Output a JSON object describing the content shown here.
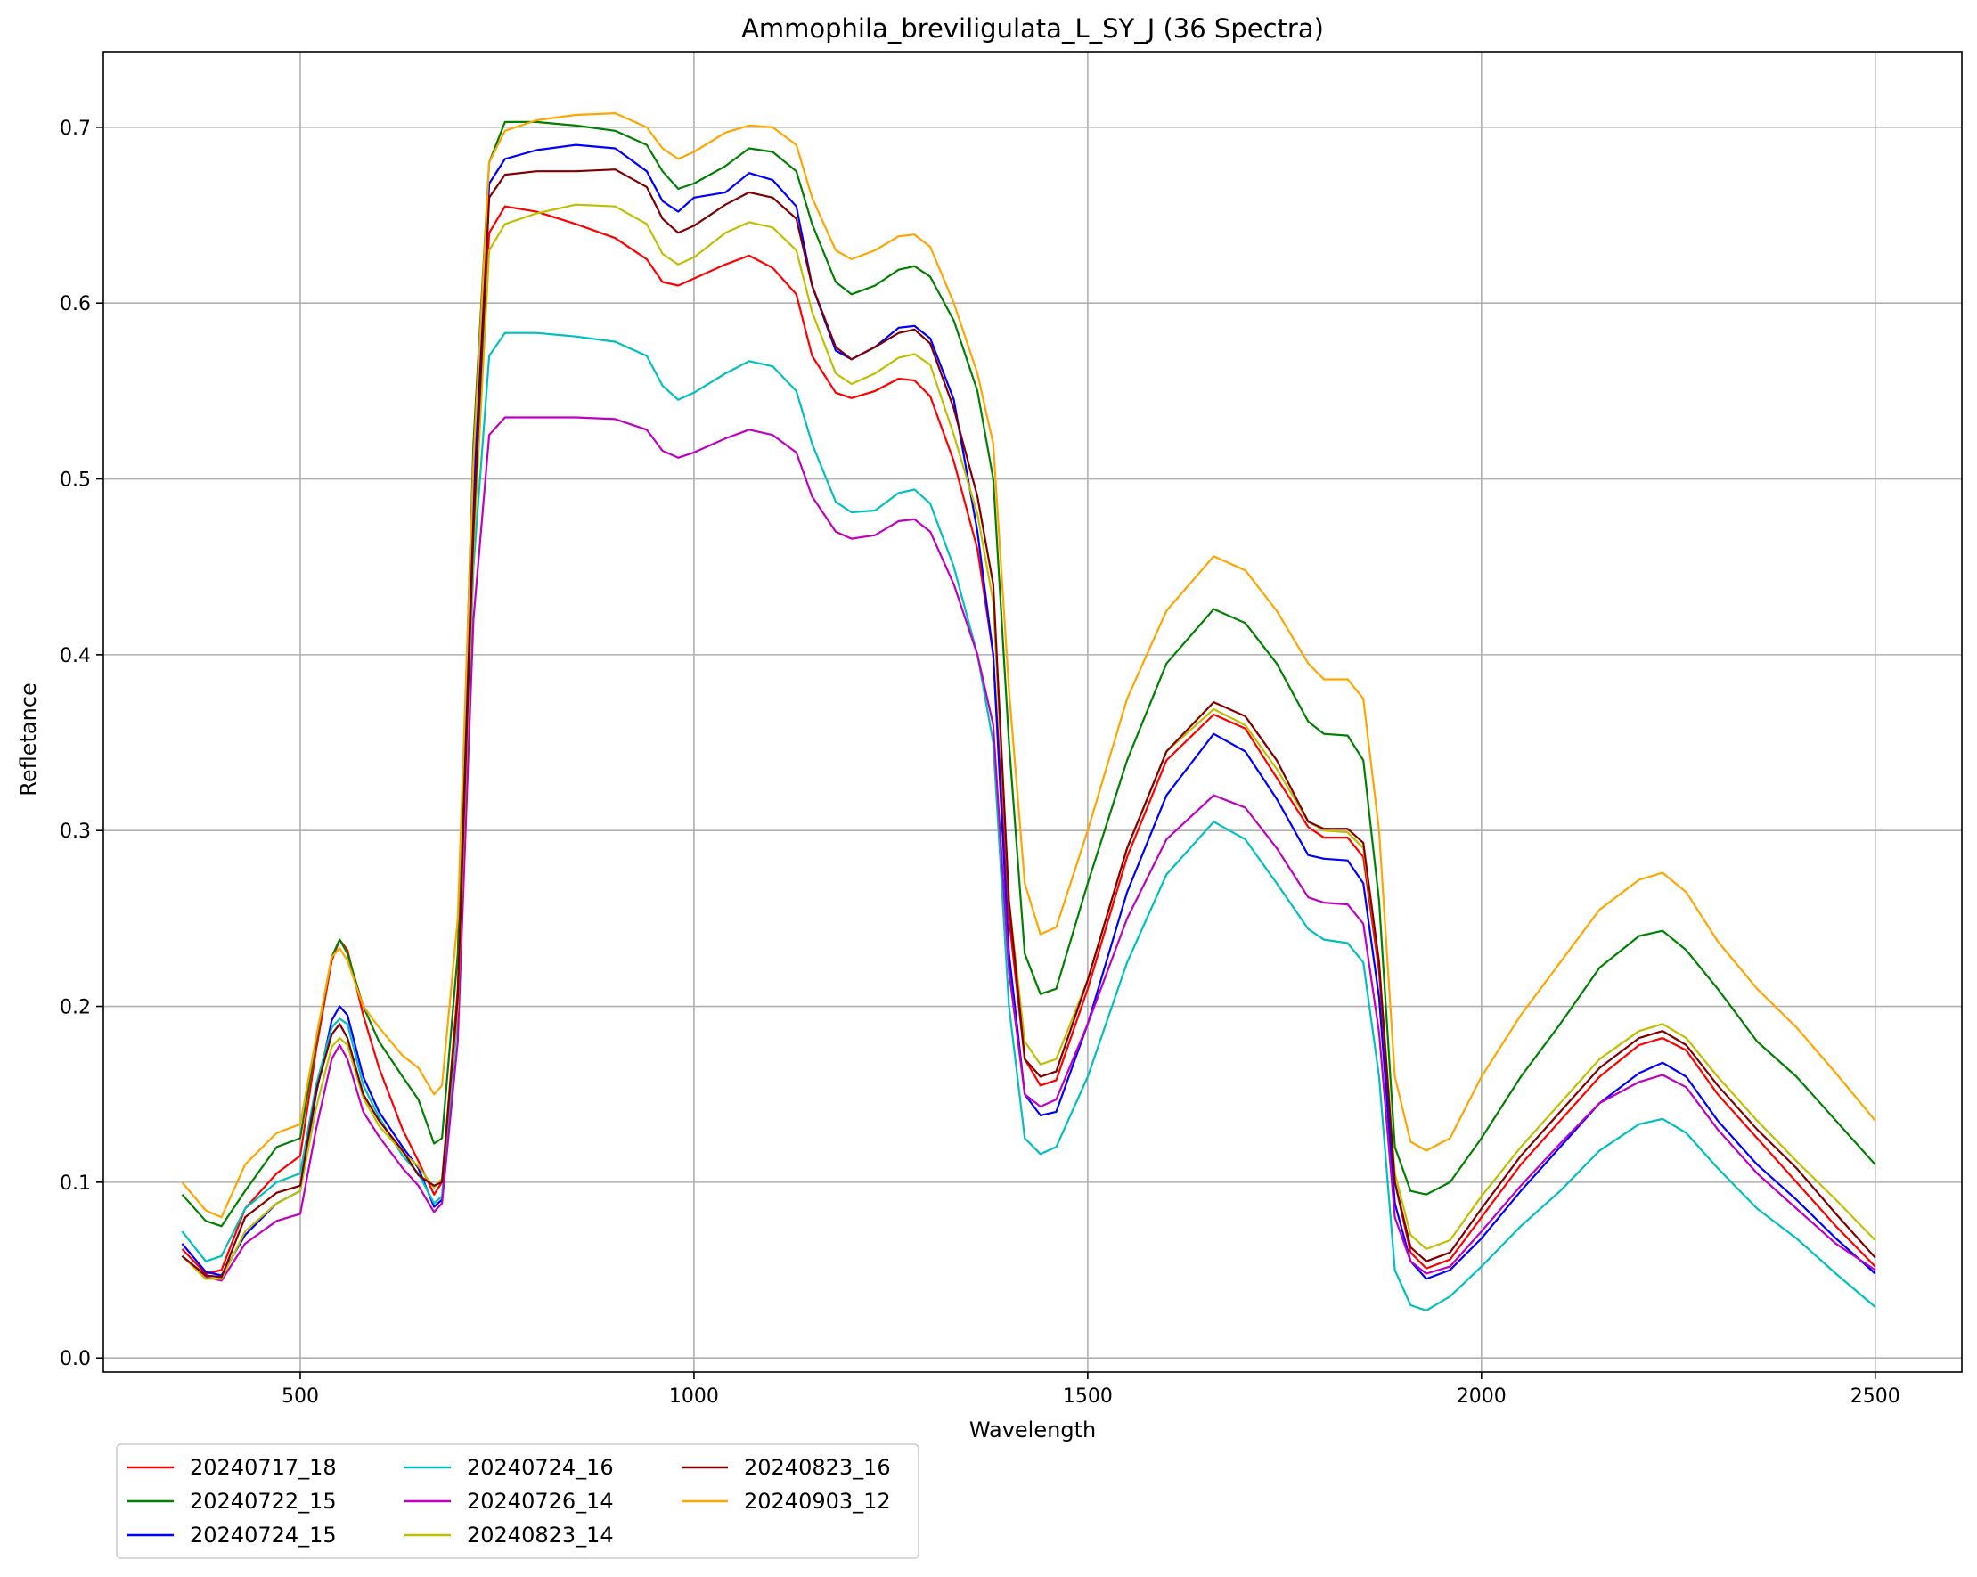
{
  "chart_data": {
    "type": "line",
    "title": "Ammophila_breviligulata_L_SY_J (36 Spectra)",
    "xlabel": "Wavelength",
    "ylabel": "Refletance",
    "xlim": [
      250,
      2610
    ],
    "ylim": [
      -0.008,
      0.743
    ],
    "xticks": [
      500,
      1000,
      1500,
      2000,
      2500
    ],
    "yticks": [
      0.0,
      0.1,
      0.2,
      0.3,
      0.4,
      0.5,
      0.6,
      0.7
    ],
    "grid": true,
    "legend": {
      "position": "bottom-left-outside",
      "columns": 3
    },
    "x": [
      350,
      380,
      400,
      430,
      470,
      500,
      520,
      540,
      550,
      560,
      580,
      600,
      630,
      650,
      670,
      680,
      700,
      720,
      740,
      760,
      800,
      850,
      900,
      940,
      960,
      980,
      1000,
      1040,
      1070,
      1100,
      1130,
      1150,
      1180,
      1200,
      1230,
      1260,
      1280,
      1300,
      1330,
      1360,
      1380,
      1400,
      1420,
      1440,
      1460,
      1500,
      1550,
      1600,
      1660,
      1700,
      1740,
      1780,
      1800,
      1830,
      1850,
      1870,
      1890,
      1910,
      1930,
      1960,
      2000,
      2050,
      2100,
      2150,
      2200,
      2230,
      2260,
      2300,
      2350,
      2400,
      2450,
      2500
    ],
    "series": [
      {
        "name": "20240717_18",
        "color": "#ff0000",
        "values": [
          0.062,
          0.048,
          0.05,
          0.085,
          0.105,
          0.115,
          0.175,
          0.226,
          0.238,
          0.232,
          0.195,
          0.165,
          0.13,
          0.112,
          0.093,
          0.1,
          0.21,
          0.48,
          0.64,
          0.655,
          0.652,
          0.645,
          0.637,
          0.625,
          0.612,
          0.61,
          0.614,
          0.622,
          0.627,
          0.62,
          0.605,
          0.57,
          0.549,
          0.546,
          0.55,
          0.557,
          0.556,
          0.547,
          0.51,
          0.46,
          0.4,
          0.25,
          0.17,
          0.155,
          0.158,
          0.21,
          0.285,
          0.34,
          0.366,
          0.358,
          0.33,
          0.302,
          0.296,
          0.296,
          0.285,
          0.22,
          0.1,
          0.06,
          0.051,
          0.056,
          0.08,
          0.11,
          0.135,
          0.16,
          0.178,
          0.182,
          0.175,
          0.15,
          0.125,
          0.1,
          0.075,
          0.052
        ]
      },
      {
        "name": "20240722_15",
        "color": "#008000",
        "values": [
          0.093,
          0.078,
          0.075,
          0.095,
          0.12,
          0.125,
          0.18,
          0.228,
          0.238,
          0.23,
          0.2,
          0.18,
          0.16,
          0.147,
          0.122,
          0.125,
          0.23,
          0.52,
          0.68,
          0.703,
          0.703,
          0.701,
          0.698,
          0.69,
          0.675,
          0.665,
          0.668,
          0.678,
          0.688,
          0.686,
          0.675,
          0.645,
          0.612,
          0.605,
          0.61,
          0.619,
          0.621,
          0.615,
          0.59,
          0.55,
          0.5,
          0.35,
          0.23,
          0.207,
          0.21,
          0.27,
          0.34,
          0.395,
          0.426,
          0.418,
          0.395,
          0.362,
          0.355,
          0.354,
          0.34,
          0.26,
          0.12,
          0.095,
          0.093,
          0.1,
          0.125,
          0.16,
          0.19,
          0.222,
          0.24,
          0.243,
          0.232,
          0.21,
          0.18,
          0.16,
          0.135,
          0.11
        ]
      },
      {
        "name": "20240724_15",
        "color": "#0000ff",
        "values": [
          0.065,
          0.049,
          0.047,
          0.07,
          0.088,
          0.095,
          0.15,
          0.192,
          0.2,
          0.195,
          0.16,
          0.14,
          0.12,
          0.108,
          0.086,
          0.09,
          0.2,
          0.49,
          0.668,
          0.682,
          0.687,
          0.69,
          0.688,
          0.675,
          0.658,
          0.652,
          0.66,
          0.663,
          0.674,
          0.67,
          0.655,
          0.61,
          0.573,
          0.568,
          0.575,
          0.586,
          0.587,
          0.58,
          0.545,
          0.47,
          0.4,
          0.23,
          0.15,
          0.138,
          0.14,
          0.19,
          0.265,
          0.32,
          0.355,
          0.345,
          0.318,
          0.286,
          0.284,
          0.283,
          0.27,
          0.205,
          0.088,
          0.055,
          0.045,
          0.05,
          0.068,
          0.095,
          0.12,
          0.145,
          0.162,
          0.168,
          0.16,
          0.135,
          0.11,
          0.09,
          0.068,
          0.048
        ]
      },
      {
        "name": "20240724_16",
        "color": "#00bfbf",
        "values": [
          0.072,
          0.055,
          0.058,
          0.085,
          0.1,
          0.105,
          0.155,
          0.188,
          0.193,
          0.19,
          0.155,
          0.137,
          0.115,
          0.105,
          0.088,
          0.092,
          0.195,
          0.45,
          0.57,
          0.583,
          0.583,
          0.581,
          0.578,
          0.57,
          0.553,
          0.545,
          0.549,
          0.56,
          0.567,
          0.564,
          0.55,
          0.52,
          0.487,
          0.481,
          0.482,
          0.492,
          0.494,
          0.486,
          0.45,
          0.4,
          0.35,
          0.2,
          0.125,
          0.116,
          0.12,
          0.16,
          0.225,
          0.275,
          0.305,
          0.295,
          0.27,
          0.244,
          0.238,
          0.236,
          0.225,
          0.16,
          0.05,
          0.03,
          0.027,
          0.035,
          0.052,
          0.075,
          0.095,
          0.118,
          0.133,
          0.136,
          0.128,
          0.108,
          0.085,
          0.068,
          0.048,
          0.029
        ]
      },
      {
        "name": "20240726_14",
        "color": "#bf00bf",
        "values": [
          0.058,
          0.046,
          0.044,
          0.065,
          0.078,
          0.082,
          0.13,
          0.17,
          0.178,
          0.17,
          0.14,
          0.126,
          0.108,
          0.098,
          0.083,
          0.088,
          0.18,
          0.42,
          0.525,
          0.535,
          0.535,
          0.535,
          0.534,
          0.528,
          0.516,
          0.512,
          0.515,
          0.523,
          0.528,
          0.525,
          0.515,
          0.49,
          0.47,
          0.466,
          0.468,
          0.476,
          0.477,
          0.47,
          0.44,
          0.4,
          0.36,
          0.22,
          0.15,
          0.143,
          0.147,
          0.19,
          0.25,
          0.295,
          0.32,
          0.313,
          0.29,
          0.262,
          0.259,
          0.258,
          0.247,
          0.185,
          0.08,
          0.055,
          0.048,
          0.052,
          0.072,
          0.098,
          0.122,
          0.145,
          0.157,
          0.161,
          0.154,
          0.13,
          0.105,
          0.085,
          0.065,
          0.05
        ]
      },
      {
        "name": "20240823_14",
        "color": "#bfbf00",
        "values": [
          0.058,
          0.045,
          0.045,
          0.072,
          0.088,
          0.095,
          0.142,
          0.177,
          0.182,
          0.178,
          0.148,
          0.132,
          0.117,
          0.109,
          0.097,
          0.102,
          0.2,
          0.46,
          0.63,
          0.645,
          0.651,
          0.656,
          0.655,
          0.645,
          0.628,
          0.622,
          0.626,
          0.64,
          0.646,
          0.643,
          0.63,
          0.595,
          0.56,
          0.554,
          0.56,
          0.569,
          0.571,
          0.565,
          0.525,
          0.48,
          0.43,
          0.26,
          0.18,
          0.167,
          0.17,
          0.215,
          0.29,
          0.345,
          0.369,
          0.36,
          0.335,
          0.305,
          0.3,
          0.299,
          0.29,
          0.225,
          0.105,
          0.07,
          0.062,
          0.067,
          0.092,
          0.12,
          0.145,
          0.17,
          0.186,
          0.19,
          0.182,
          0.16,
          0.135,
          0.112,
          0.09,
          0.067
        ]
      },
      {
        "name": "20240823_16",
        "color": "#800000",
        "values": [
          0.058,
          0.047,
          0.046,
          0.08,
          0.094,
          0.098,
          0.152,
          0.184,
          0.19,
          0.182,
          0.15,
          0.135,
          0.118,
          0.104,
          0.098,
          0.1,
          0.205,
          0.47,
          0.66,
          0.673,
          0.675,
          0.675,
          0.676,
          0.666,
          0.648,
          0.64,
          0.644,
          0.656,
          0.663,
          0.66,
          0.648,
          0.61,
          0.575,
          0.568,
          0.575,
          0.583,
          0.585,
          0.577,
          0.54,
          0.49,
          0.44,
          0.26,
          0.17,
          0.16,
          0.163,
          0.215,
          0.29,
          0.345,
          0.373,
          0.365,
          0.34,
          0.305,
          0.301,
          0.301,
          0.293,
          0.225,
          0.1,
          0.063,
          0.055,
          0.06,
          0.085,
          0.115,
          0.14,
          0.165,
          0.182,
          0.186,
          0.178,
          0.155,
          0.13,
          0.108,
          0.082,
          0.057
        ]
      },
      {
        "name": "20240903_12",
        "color": "#ffa500",
        "values": [
          0.1,
          0.084,
          0.08,
          0.11,
          0.128,
          0.133,
          0.182,
          0.228,
          0.233,
          0.226,
          0.2,
          0.188,
          0.172,
          0.165,
          0.15,
          0.155,
          0.25,
          0.51,
          0.68,
          0.698,
          0.704,
          0.707,
          0.708,
          0.7,
          0.688,
          0.682,
          0.686,
          0.697,
          0.701,
          0.7,
          0.69,
          0.66,
          0.63,
          0.625,
          0.63,
          0.638,
          0.639,
          0.632,
          0.6,
          0.56,
          0.52,
          0.38,
          0.27,
          0.241,
          0.245,
          0.3,
          0.375,
          0.425,
          0.456,
          0.448,
          0.425,
          0.395,
          0.386,
          0.386,
          0.375,
          0.3,
          0.16,
          0.123,
          0.118,
          0.125,
          0.16,
          0.195,
          0.225,
          0.255,
          0.272,
          0.276,
          0.265,
          0.237,
          0.21,
          0.188,
          0.162,
          0.135
        ]
      }
    ]
  }
}
